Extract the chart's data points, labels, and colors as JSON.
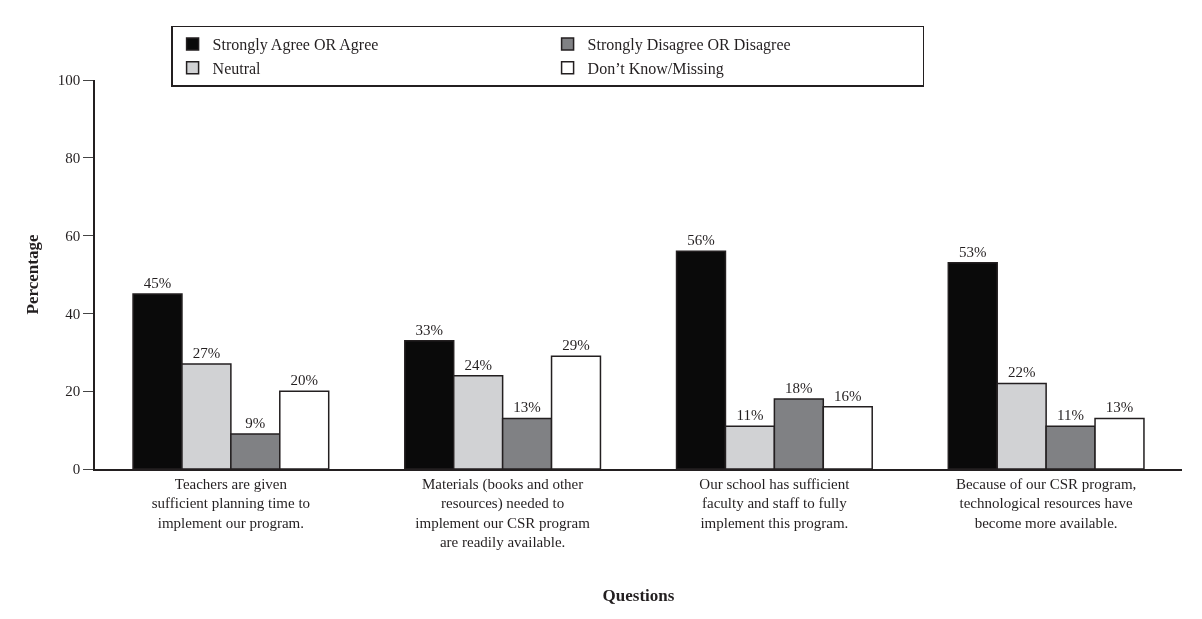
{
  "chart_data": {
    "type": "bar",
    "xlabel": "Questions",
    "ylabel": "Percentage",
    "categories": [
      "Teachers are given sufficient planning time to implement our program.",
      "Materials (books and other resources) needed to implement our CSR program are readily available.",
      "Our school has sufficient faculty and staff to fully implement this program.",
      "Because of our CSR program, technological resources have become more available."
    ],
    "series": [
      {
        "name": "Strongly Agree OR Agree",
        "color": "#0a0a0a",
        "values": [
          45,
          33,
          56,
          53
        ],
        "value_labels": [
          "45%",
          "33%",
          "56%",
          "53%"
        ]
      },
      {
        "name": "Neutral",
        "color": "#d1d2d4",
        "values": [
          27,
          24,
          11,
          22
        ],
        "value_labels": [
          "27%",
          "24%",
          "11%",
          "22%"
        ]
      },
      {
        "name": "Strongly Disagree OR Disagree",
        "color": "#808184",
        "values": [
          9,
          13,
          18,
          11
        ],
        "value_labels": [
          "9%",
          "13%",
          "18%",
          "11%"
        ]
      },
      {
        "name": "Don’t Know/Missing",
        "color": "#ffffff",
        "values": [
          20,
          29,
          16,
          13
        ],
        "value_labels": [
          "20%",
          "29%",
          "16%",
          "13%"
        ]
      }
    ],
    "ylim": [
      0,
      100
    ],
    "yticks": [
      0,
      20,
      40,
      60,
      80,
      100
    ],
    "legend": "top"
  }
}
